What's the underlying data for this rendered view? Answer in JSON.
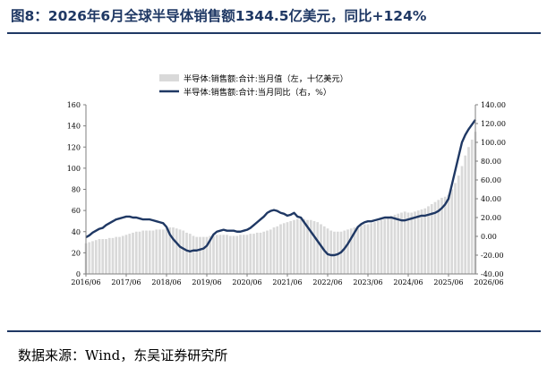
{
  "title": "图8：2026年6月全球半导体销售额1344.5亿美元，同比+124%",
  "source": "数据来源：Wind，东吴证券研究所",
  "colors": {
    "title": "#1f3864",
    "bar": "#d9d9d9",
    "line": "#1f3864"
  },
  "chart_data": {
    "type": "bar+line",
    "x_ticks": [
      "2016/06",
      "2017/06",
      "2018/06",
      "2019/06",
      "2020/06",
      "2021/06",
      "2022/06",
      "2023/06",
      "2024/06",
      "2025/06",
      "2026/06"
    ],
    "left_axis": {
      "ylim": [
        0,
        160
      ],
      "ticks": [
        0,
        20,
        40,
        60,
        80,
        100,
        120,
        140,
        160
      ]
    },
    "right_axis": {
      "ylim": [
        -40,
        140
      ],
      "ticks": [
        "-40.00",
        "-20.00",
        "0.00",
        "20.00",
        "40.00",
        "60.00",
        "80.00",
        "100.00",
        "120.00",
        "140.00"
      ]
    },
    "legend": {
      "placement": "top-center"
    },
    "series": [
      {
        "name": "半导体:销售额:合计:当月值（左，十亿美元）",
        "type": "bar",
        "axis": "left",
        "values": [
          29,
          30,
          31,
          32,
          33,
          33,
          33,
          34,
          34,
          35,
          35,
          36,
          37,
          38,
          39,
          40,
          40,
          41,
          41,
          41,
          41,
          42,
          42,
          42,
          43,
          44,
          44,
          43,
          42,
          41,
          39,
          38,
          36,
          35,
          35,
          35,
          35,
          36,
          36,
          37,
          37,
          37,
          37,
          36,
          36,
          36,
          37,
          37,
          37,
          38,
          38,
          39,
          39,
          40,
          41,
          42,
          44,
          45,
          47,
          48,
          49,
          50,
          51,
          52,
          52,
          52,
          51,
          51,
          50,
          49,
          47,
          45,
          43,
          41,
          40,
          40,
          40,
          41,
          42,
          43,
          44,
          45,
          46,
          47,
          47,
          48,
          49,
          50,
          51,
          52,
          53,
          55,
          56,
          57,
          58,
          59,
          58,
          58,
          59,
          60,
          61,
          62,
          64,
          66,
          68,
          70,
          72,
          73,
          75,
          80,
          86,
          93,
          102,
          112,
          120,
          127,
          134.4
        ]
      },
      {
        "name": "半导体:销售额:合计:当月同比（右，%）",
        "type": "line",
        "axis": "right",
        "values": [
          -1,
          1,
          4,
          6,
          8,
          9,
          12,
          14,
          16,
          18,
          19,
          20,
          21,
          21,
          20,
          20,
          19,
          18,
          18,
          18,
          17,
          16,
          15,
          14,
          10,
          2,
          -3,
          -7,
          -11,
          -13,
          -15,
          -16,
          -15,
          -15,
          -14,
          -13,
          -10,
          -4,
          2,
          5,
          6,
          7,
          6,
          6,
          6,
          5,
          5,
          6,
          7,
          9,
          12,
          15,
          18,
          21,
          25,
          27,
          28,
          27,
          25,
          24,
          22,
          23,
          25,
          21,
          20,
          15,
          10,
          5,
          0,
          -5,
          -10,
          -15,
          -19,
          -20,
          -20,
          -19,
          -17,
          -13,
          -8,
          -2,
          4,
          10,
          13,
          15,
          16,
          16,
          17,
          18,
          19,
          20,
          20,
          20,
          19,
          18,
          17,
          17,
          18,
          19,
          20,
          21,
          22,
          22,
          23,
          24,
          25,
          27,
          30,
          34,
          40,
          55,
          70,
          85,
          100,
          108,
          114,
          119,
          124
        ]
      }
    ]
  }
}
